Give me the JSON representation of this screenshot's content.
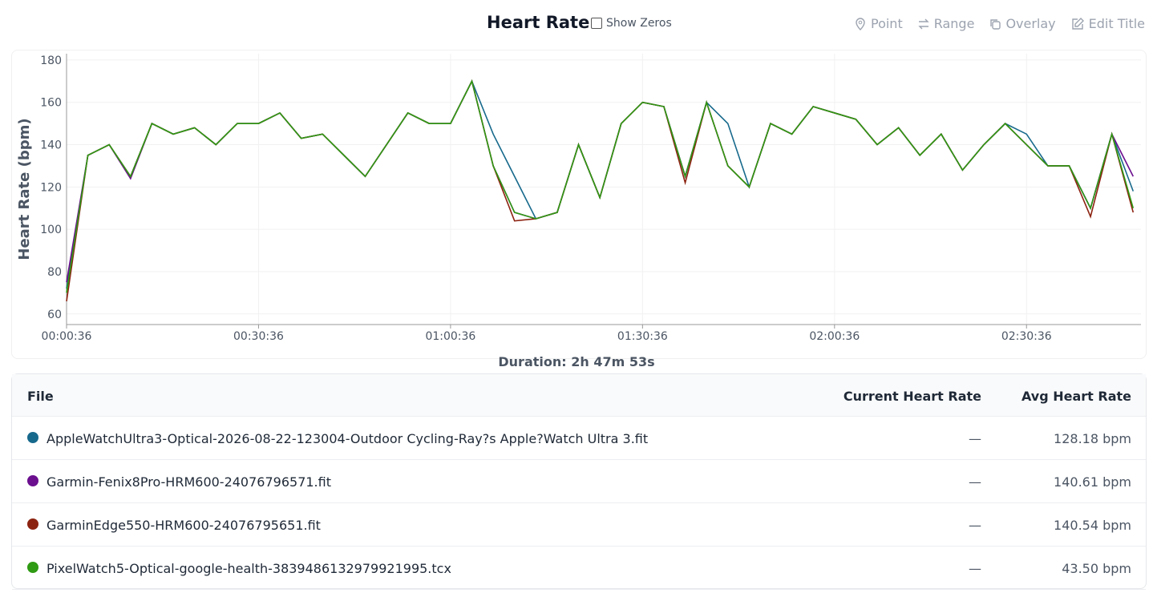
{
  "header": {
    "title": "Heart Rate",
    "checkbox": "Show Zeros",
    "tools": [
      "Point",
      "Range",
      "Overlay",
      "Edit Title"
    ]
  },
  "chart_data": {
    "type": "line",
    "y_label": "Heart Rate (bpm)",
    "x_label": "Duration: 2h 47m 53s",
    "x": [
      36,
      236,
      436,
      636,
      836,
      1036,
      1236,
      1436,
      1636,
      1836,
      2036,
      2236,
      2436,
      2636,
      2836,
      3036,
      3236,
      3436,
      3636,
      3836,
      4036,
      4236,
      4436,
      4636,
      4836,
      5036,
      5236,
      5436,
      5636,
      5836,
      6036,
      6236,
      6436,
      6636,
      6836,
      7036,
      7236,
      7436,
      7636,
      7836,
      8036,
      8236,
      8436,
      8636,
      8836,
      9036,
      9236,
      9436,
      9636,
      9836,
      10036
    ],
    "xlim": [
      36,
      10109
    ],
    "xticks": [
      {
        "value": 36,
        "label": "00:00:36"
      },
      {
        "value": 1836,
        "label": "00:30:36"
      },
      {
        "value": 3636,
        "label": "01:00:36"
      },
      {
        "value": 5436,
        "label": "01:30:36"
      },
      {
        "value": 7236,
        "label": "02:00:36"
      },
      {
        "value": 9036,
        "label": "02:30:36"
      }
    ],
    "ylim": [
      55,
      183
    ],
    "yticks": [
      60,
      80,
      100,
      120,
      140,
      160,
      180
    ],
    "grid": true,
    "series": [
      {
        "name": "AppleWatchUltra3-Optical-2026-08-22-123004-Outdoor Cycling-Ray?s Apple?Watch Ultra 3.fit",
        "color": "#17698c",
        "values": [
          72,
          135,
          140,
          125,
          150,
          145,
          148,
          140,
          150,
          150,
          155,
          143,
          145,
          135,
          125,
          140,
          155,
          150,
          150,
          170,
          145,
          125,
          105,
          108,
          140,
          115,
          150,
          160,
          158,
          125,
          160,
          150,
          120,
          150,
          145,
          158,
          155,
          152,
          140,
          148,
          135,
          145,
          128,
          140,
          150,
          145,
          130,
          130,
          110,
          145,
          118
        ]
      },
      {
        "name": "Garmin-Fenix8Pro-HRM600-24076796571.fit",
        "color": "#6b0f8f",
        "values": [
          75,
          135,
          140,
          124,
          150,
          145,
          148,
          140,
          150,
          150,
          155,
          143,
          145,
          135,
          125,
          140,
          155,
          150,
          150,
          170,
          130,
          108,
          105,
          108,
          140,
          115,
          150,
          160,
          158,
          125,
          160,
          130,
          120,
          150,
          145,
          158,
          155,
          152,
          140,
          148,
          135,
          145,
          128,
          140,
          150,
          140,
          130,
          130,
          110,
          145,
          125
        ]
      },
      {
        "name": "GarminEdge550-HRM600-24076795651.fit",
        "color": "#8c2311",
        "values": [
          66,
          135,
          140,
          125,
          150,
          145,
          148,
          140,
          150,
          150,
          155,
          143,
          145,
          135,
          125,
          140,
          155,
          150,
          150,
          170,
          130,
          104,
          105,
          108,
          140,
          115,
          150,
          160,
          158,
          122,
          160,
          130,
          120,
          150,
          145,
          158,
          155,
          152,
          140,
          148,
          135,
          145,
          128,
          140,
          150,
          140,
          130,
          130,
          106,
          145,
          108
        ]
      },
      {
        "name": "PixelWatch5-Optical-google-health-3839486132979921995.tcx",
        "color": "#2f9a13",
        "values": [
          70,
          135,
          140,
          125,
          150,
          145,
          148,
          140,
          150,
          150,
          155,
          143,
          145,
          135,
          125,
          140,
          155,
          150,
          150,
          170,
          130,
          108,
          105,
          108,
          140,
          115,
          150,
          160,
          158,
          125,
          160,
          130,
          120,
          150,
          145,
          158,
          155,
          152,
          140,
          148,
          135,
          145,
          128,
          140,
          150,
          140,
          130,
          130,
          110,
          145,
          110
        ]
      }
    ]
  },
  "table": {
    "headers": [
      "File",
      "Current Heart Rate",
      "Avg Heart Rate"
    ],
    "rows": [
      {
        "current": "—",
        "avg": "128.18 bpm"
      },
      {
        "current": "—",
        "avg": "140.61 bpm"
      },
      {
        "current": "—",
        "avg": "140.54 bpm"
      },
      {
        "current": "—",
        "avg": "43.50 bpm"
      }
    ]
  }
}
